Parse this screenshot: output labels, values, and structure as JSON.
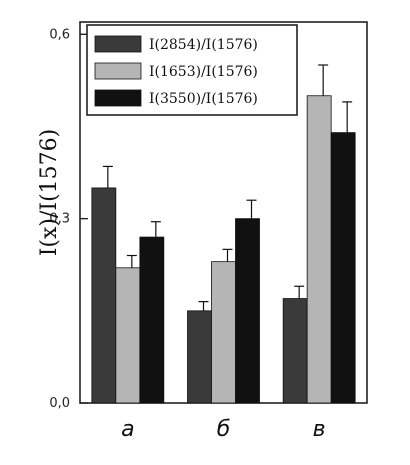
{
  "chart_data": {
    "type": "bar",
    "categories": [
      "а",
      "б",
      "в"
    ],
    "series": [
      {
        "name": "I(2854)/I(1576)",
        "values": [
          0.35,
          0.15,
          0.17
        ],
        "errors": [
          0.035,
          0.015,
          0.02
        ],
        "color": "#3a3a3a"
      },
      {
        "name": "I(1653)/I(1576)",
        "values": [
          0.22,
          0.23,
          0.5
        ],
        "errors": [
          0.02,
          0.02,
          0.05
        ],
        "color": "#b5b5b5"
      },
      {
        "name": "I(3550)/I(1576)",
        "values": [
          0.27,
          0.3,
          0.44
        ],
        "errors": [
          0.025,
          0.03,
          0.05
        ],
        "color": "#111111"
      }
    ],
    "ylabel": "I(x)/I(1576)",
    "ylim": [
      0,
      0.62
    ],
    "yticks": [
      0.0,
      0.3,
      0.6
    ],
    "ytick_labels": [
      "0,0",
      "0,3",
      "0,6"
    ],
    "error_bars": true,
    "legend_position": "top"
  }
}
